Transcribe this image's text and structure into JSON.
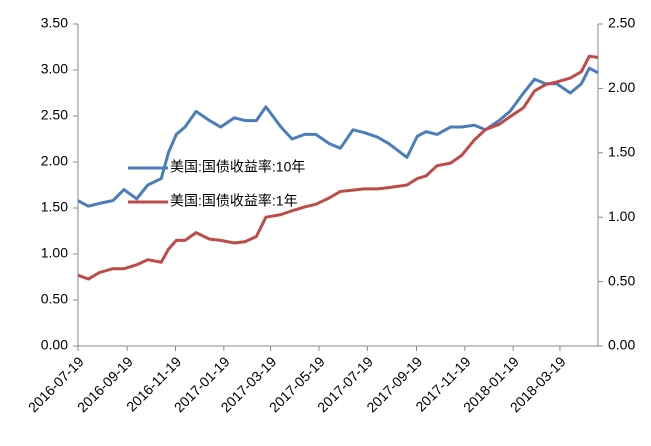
{
  "chart_data": {
    "type": "line",
    "x": [
      "2016-07-19",
      "2016-08-01",
      "2016-08-15",
      "2016-09-01",
      "2016-09-15",
      "2016-10-01",
      "2016-10-15",
      "2016-11-01",
      "2016-11-10",
      "2016-11-20",
      "2016-12-01",
      "2016-12-15",
      "2017-01-01",
      "2017-01-15",
      "2017-02-01",
      "2017-02-15",
      "2017-03-01",
      "2017-03-13",
      "2017-04-01",
      "2017-04-15",
      "2017-05-01",
      "2017-05-15",
      "2017-06-01",
      "2017-06-15",
      "2017-07-01",
      "2017-07-15",
      "2017-08-01",
      "2017-08-15",
      "2017-09-07",
      "2017-09-20",
      "2017-10-01",
      "2017-10-15",
      "2017-11-01",
      "2017-11-15",
      "2017-12-01",
      "2017-12-15",
      "2018-01-01",
      "2018-01-15",
      "2018-02-01",
      "2018-02-15",
      "2018-03-01",
      "2018-03-15",
      "2018-04-01",
      "2018-04-15",
      "2018-04-25",
      "2018-05-06"
    ],
    "series": [
      {
        "name": "美国:国债收益率:10年",
        "color": "#4a7ebb",
        "axis": "y",
        "values": [
          1.58,
          1.52,
          1.55,
          1.58,
          1.7,
          1.6,
          1.75,
          1.82,
          2.1,
          2.3,
          2.38,
          2.55,
          2.45,
          2.38,
          2.48,
          2.45,
          2.45,
          2.6,
          2.38,
          2.25,
          2.3,
          2.3,
          2.2,
          2.15,
          2.35,
          2.32,
          2.27,
          2.2,
          2.05,
          2.28,
          2.33,
          2.3,
          2.38,
          2.38,
          2.4,
          2.35,
          2.45,
          2.55,
          2.75,
          2.9,
          2.85,
          2.85,
          2.75,
          2.85,
          3.02,
          2.97
        ]
      },
      {
        "name": "美国:国债收益率:1年",
        "color": "#be4b48",
        "axis": "y2",
        "values": [
          0.55,
          0.52,
          0.57,
          0.6,
          0.6,
          0.63,
          0.67,
          0.65,
          0.75,
          0.82,
          0.82,
          0.88,
          0.83,
          0.82,
          0.8,
          0.81,
          0.85,
          1.0,
          1.02,
          1.05,
          1.08,
          1.1,
          1.15,
          1.2,
          1.21,
          1.22,
          1.22,
          1.23,
          1.25,
          1.3,
          1.32,
          1.4,
          1.42,
          1.48,
          1.6,
          1.68,
          1.72,
          1.78,
          1.85,
          1.98,
          2.03,
          2.05,
          2.08,
          2.13,
          2.25,
          2.24
        ]
      }
    ],
    "xlim": [
      "2016-07-19",
      "2018-05-06"
    ],
    "xticks": [
      "2016-07-19",
      "2016-09-19",
      "2016-11-19",
      "2017-01-19",
      "2017-03-19",
      "2017-05-19",
      "2017-07-19",
      "2017-09-19",
      "2017-11-19",
      "2018-01-19",
      "2018-03-19"
    ],
    "ylim": [
      0,
      3.5
    ],
    "yticks": [
      {
        "value": 0,
        "label": "0.00"
      },
      {
        "value": 0.5,
        "label": "0.50"
      },
      {
        "value": 1,
        "label": "1.00"
      },
      {
        "value": 1.5,
        "label": "1.50"
      },
      {
        "value": 2,
        "label": "2.00"
      },
      {
        "value": 2.5,
        "label": "2.50"
      },
      {
        "value": 3,
        "label": "3.00"
      },
      {
        "value": 3.5,
        "label": "3.50"
      }
    ],
    "y2lim": [
      0,
      2.5
    ],
    "y2ticks": [
      {
        "value": 0,
        "label": "0.00"
      },
      {
        "value": 0.5,
        "label": "0.50"
      },
      {
        "value": 1,
        "label": "1.00"
      },
      {
        "value": 1.5,
        "label": "1.50"
      },
      {
        "value": 2,
        "label": "2.00"
      },
      {
        "value": 2.5,
        "label": "2.50"
      }
    ],
    "legend": "center-left"
  }
}
